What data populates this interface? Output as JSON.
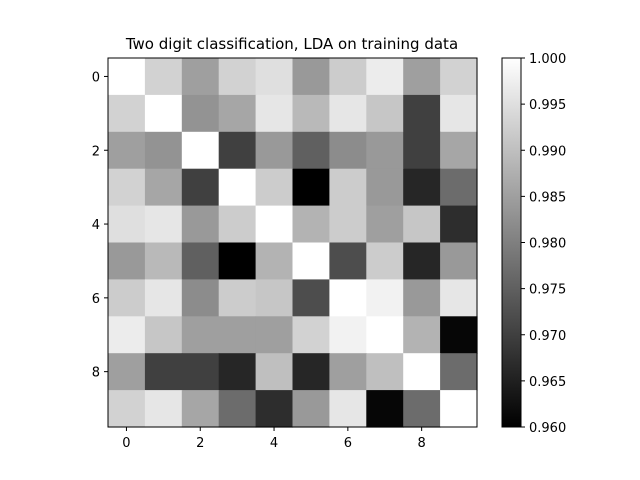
{
  "chart_data": {
    "type": "heatmap",
    "title": "Two digit classification, LDA on training data",
    "xlabel": "",
    "ylabel": "",
    "x_ticks": [
      "0",
      "2",
      "4",
      "6",
      "8"
    ],
    "y_ticks": [
      "0",
      "2",
      "4",
      "6",
      "8"
    ],
    "rows": 10,
    "cols": 10,
    "colormap": "gray",
    "vmin": 0.96,
    "vmax": 1.0,
    "colorbar_ticks": [
      "0.960",
      "0.965",
      "0.970",
      "0.975",
      "0.980",
      "0.985",
      "0.990",
      "0.995",
      "1.000"
    ],
    "colorbar_values": [
      0.96,
      0.965,
      0.97,
      0.975,
      0.98,
      0.985,
      0.99,
      0.995,
      1.0
    ],
    "values": [
      [
        1.0,
        0.993,
        0.985,
        0.993,
        0.995,
        0.984,
        0.992,
        0.997,
        0.985,
        0.993
      ],
      [
        0.993,
        1.0,
        0.983,
        0.986,
        0.996,
        0.989,
        0.996,
        0.991,
        0.97,
        0.996
      ],
      [
        0.985,
        0.983,
        1.0,
        0.97,
        0.984,
        0.975,
        0.982,
        0.984,
        0.97,
        0.986
      ],
      [
        0.993,
        0.986,
        0.97,
        1.0,
        0.992,
        0.96,
        0.992,
        0.984,
        0.966,
        0.977
      ],
      [
        0.995,
        0.996,
        0.984,
        0.992,
        1.0,
        0.988,
        0.992,
        0.985,
        0.991,
        0.967
      ],
      [
        0.984,
        0.989,
        0.975,
        0.96,
        0.988,
        1.0,
        0.972,
        0.992,
        0.966,
        0.984
      ],
      [
        0.992,
        0.996,
        0.982,
        0.992,
        0.991,
        0.972,
        1.0,
        0.998,
        0.984,
        0.996
      ],
      [
        0.997,
        0.991,
        0.985,
        0.985,
        0.985,
        0.993,
        0.998,
        1.0,
        0.988,
        0.961
      ],
      [
        0.985,
        0.97,
        0.97,
        0.966,
        0.99,
        0.966,
        0.985,
        0.99,
        1.0,
        0.977
      ],
      [
        0.993,
        0.996,
        0.986,
        0.977,
        0.967,
        0.984,
        0.996,
        0.961,
        0.977,
        1.0
      ]
    ]
  }
}
